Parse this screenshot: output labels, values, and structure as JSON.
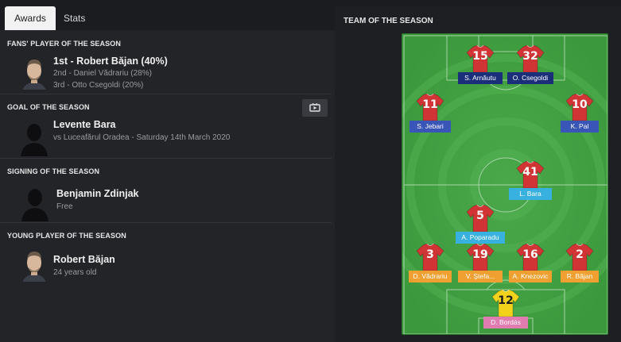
{
  "tabs": {
    "awards": "Awards",
    "stats": "Stats"
  },
  "fans_player": {
    "title": "FANS' PLAYER OF THE SEASON",
    "first": "1st - Robert Băjan (40%)",
    "second": "2nd - Daniel Vădrariu (28%)",
    "third": "3rd - Otto Csegoldi (20%)"
  },
  "goal": {
    "title": "GOAL OF THE SEASON",
    "name": "Levente Bara",
    "detail": "vs Luceafărul Oradea - Saturday 14th March 2020"
  },
  "signing": {
    "title": "SIGNING OF THE SEASON",
    "name": "Benjamin Zdinjak",
    "detail": "Free"
  },
  "young": {
    "title": "YOUNG PLAYER OF THE SEASON",
    "name": "Robert Băjan",
    "detail": "24 years old"
  },
  "team": {
    "title": "TEAM OF THE SEASON",
    "players": [
      {
        "num": "15",
        "name": "S. Arnăutu",
        "color": "navy"
      },
      {
        "num": "32",
        "name": "O. Csegoldi",
        "color": "navy"
      },
      {
        "num": "11",
        "name": "S. Jebari",
        "color": "blue"
      },
      {
        "num": "10",
        "name": "K. Pal",
        "color": "blue"
      },
      {
        "num": "41",
        "name": "L. Bara",
        "color": "cyan"
      },
      {
        "num": "5",
        "name": "A. Poparadu",
        "color": "cyan"
      },
      {
        "num": "3",
        "name": "D. Vădrariu",
        "color": "orange"
      },
      {
        "num": "19",
        "name": "V. Ştefa...",
        "color": "orange"
      },
      {
        "num": "16",
        "name": "A. Knezovic",
        "color": "orange"
      },
      {
        "num": "2",
        "name": "R. Băjan",
        "color": "orange"
      },
      {
        "num": "12",
        "name": "D. Bordás",
        "color": "pink"
      }
    ]
  }
}
